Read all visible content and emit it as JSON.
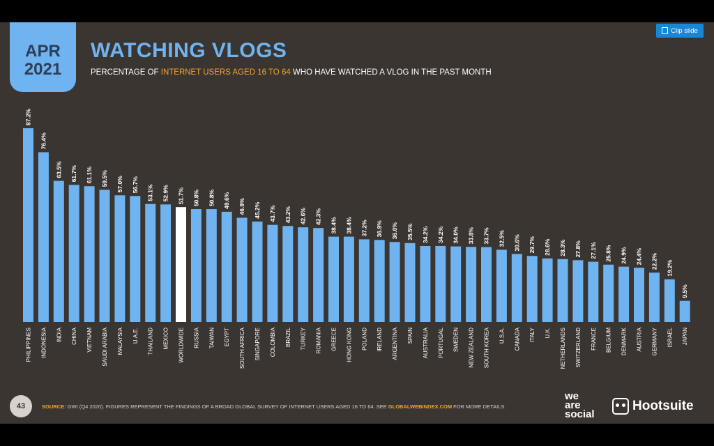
{
  "header": {
    "month": "APR",
    "year": "2021",
    "title": "WATCHING VLOGS",
    "subtitle_pre": "PERCENTAGE OF ",
    "subtitle_highlight": "INTERNET USERS AGED 16 TO 64",
    "subtitle_post": " WHO HAVE WATCHED A VLOG IN THE PAST MONTH"
  },
  "toolbar": {
    "clip_label": "Clip slide"
  },
  "colors": {
    "bar": "#6fb3f0",
    "highlight_bar": "#ffffff",
    "accent": "#f2a531",
    "background": "#3a3531"
  },
  "chart_data": {
    "type": "bar",
    "categories": [
      "PHILIPPINES",
      "INDONESIA",
      "INDIA",
      "CHINA",
      "VIETNAM",
      "SAUDI ARABIA",
      "MALAYSIA",
      "U.A.E.",
      "THAILAND",
      "MEXICO",
      "WORLDWIDE",
      "RUSSIA",
      "TAIWAN",
      "EGYPT",
      "SOUTH AFRICA",
      "SINGAPORE",
      "COLOMBIA",
      "BRAZIL",
      "TURKEY",
      "ROMANIA",
      "GREECE",
      "HONG KONG",
      "POLAND",
      "IRELAND",
      "ARGENTINA",
      "SPAIN",
      "AUSTRALIA",
      "PORTUGAL",
      "SWEDEN",
      "NEW ZEALAND",
      "SOUTH KOREA",
      "U.S.A.",
      "CANADA",
      "ITALY",
      "U.K.",
      "NETHERLANDS",
      "SWITZERLAND",
      "FRANCE",
      "BELGIUM",
      "DENMARK",
      "AUSTRIA",
      "GERMANY",
      "ISRAEL",
      "JAPAN"
    ],
    "values": [
      87.2,
      76.4,
      63.5,
      61.7,
      61.1,
      59.5,
      57.0,
      56.7,
      53.1,
      52.9,
      51.7,
      50.8,
      50.8,
      49.6,
      46.9,
      45.2,
      43.7,
      43.2,
      42.6,
      42.3,
      38.4,
      38.4,
      37.2,
      36.9,
      36.0,
      35.5,
      34.2,
      34.2,
      34.0,
      33.8,
      33.7,
      32.5,
      30.6,
      29.7,
      28.6,
      28.3,
      27.8,
      27.1,
      25.8,
      24.9,
      24.4,
      22.2,
      19.2,
      9.5
    ],
    "labels": [
      "87.2%",
      "76.4%",
      "63.5%",
      "61.7%",
      "61.1%",
      "59.5%",
      "57.0%",
      "56.7%",
      "53.1%",
      "52.9%",
      "51.7%",
      "50.8%",
      "50.8%",
      "49.6%",
      "46.9%",
      "45.2%",
      "43.7%",
      "43.2%",
      "42.6%",
      "42.3%",
      "38.4%",
      "38.4%",
      "37.2%",
      "36.9%",
      "36.0%",
      "35.5%",
      "34.2%",
      "34.2%",
      "34.0%",
      "33.8%",
      "33.7%",
      "32.5%",
      "30.6%",
      "29.7%",
      "28.6%",
      "28.3%",
      "27.8%",
      "27.1%",
      "25.8%",
      "24.9%",
      "24.4%",
      "22.2%",
      "19.2%",
      "9.5%"
    ],
    "highlight_category": "WORLDWIDE",
    "ylim": [
      0,
      100
    ],
    "grid": false
  },
  "footer": {
    "page_number": "43",
    "source_label": "SOURCE:",
    "source_text": " GWI (Q4 2020). FIGURES REPRESENT THE FINDINGS OF A BROAD GLOBAL SURVEY OF INTERNET USERS AGED 16 TO 64. SEE ",
    "source_link": "GLOBALWEBINDEX.COM",
    "source_tail": " FOR MORE DETAILS.",
    "brand_line1": "we",
    "brand_line2": "are",
    "brand_line3": "social",
    "hootsuite": "Hootsuite"
  }
}
